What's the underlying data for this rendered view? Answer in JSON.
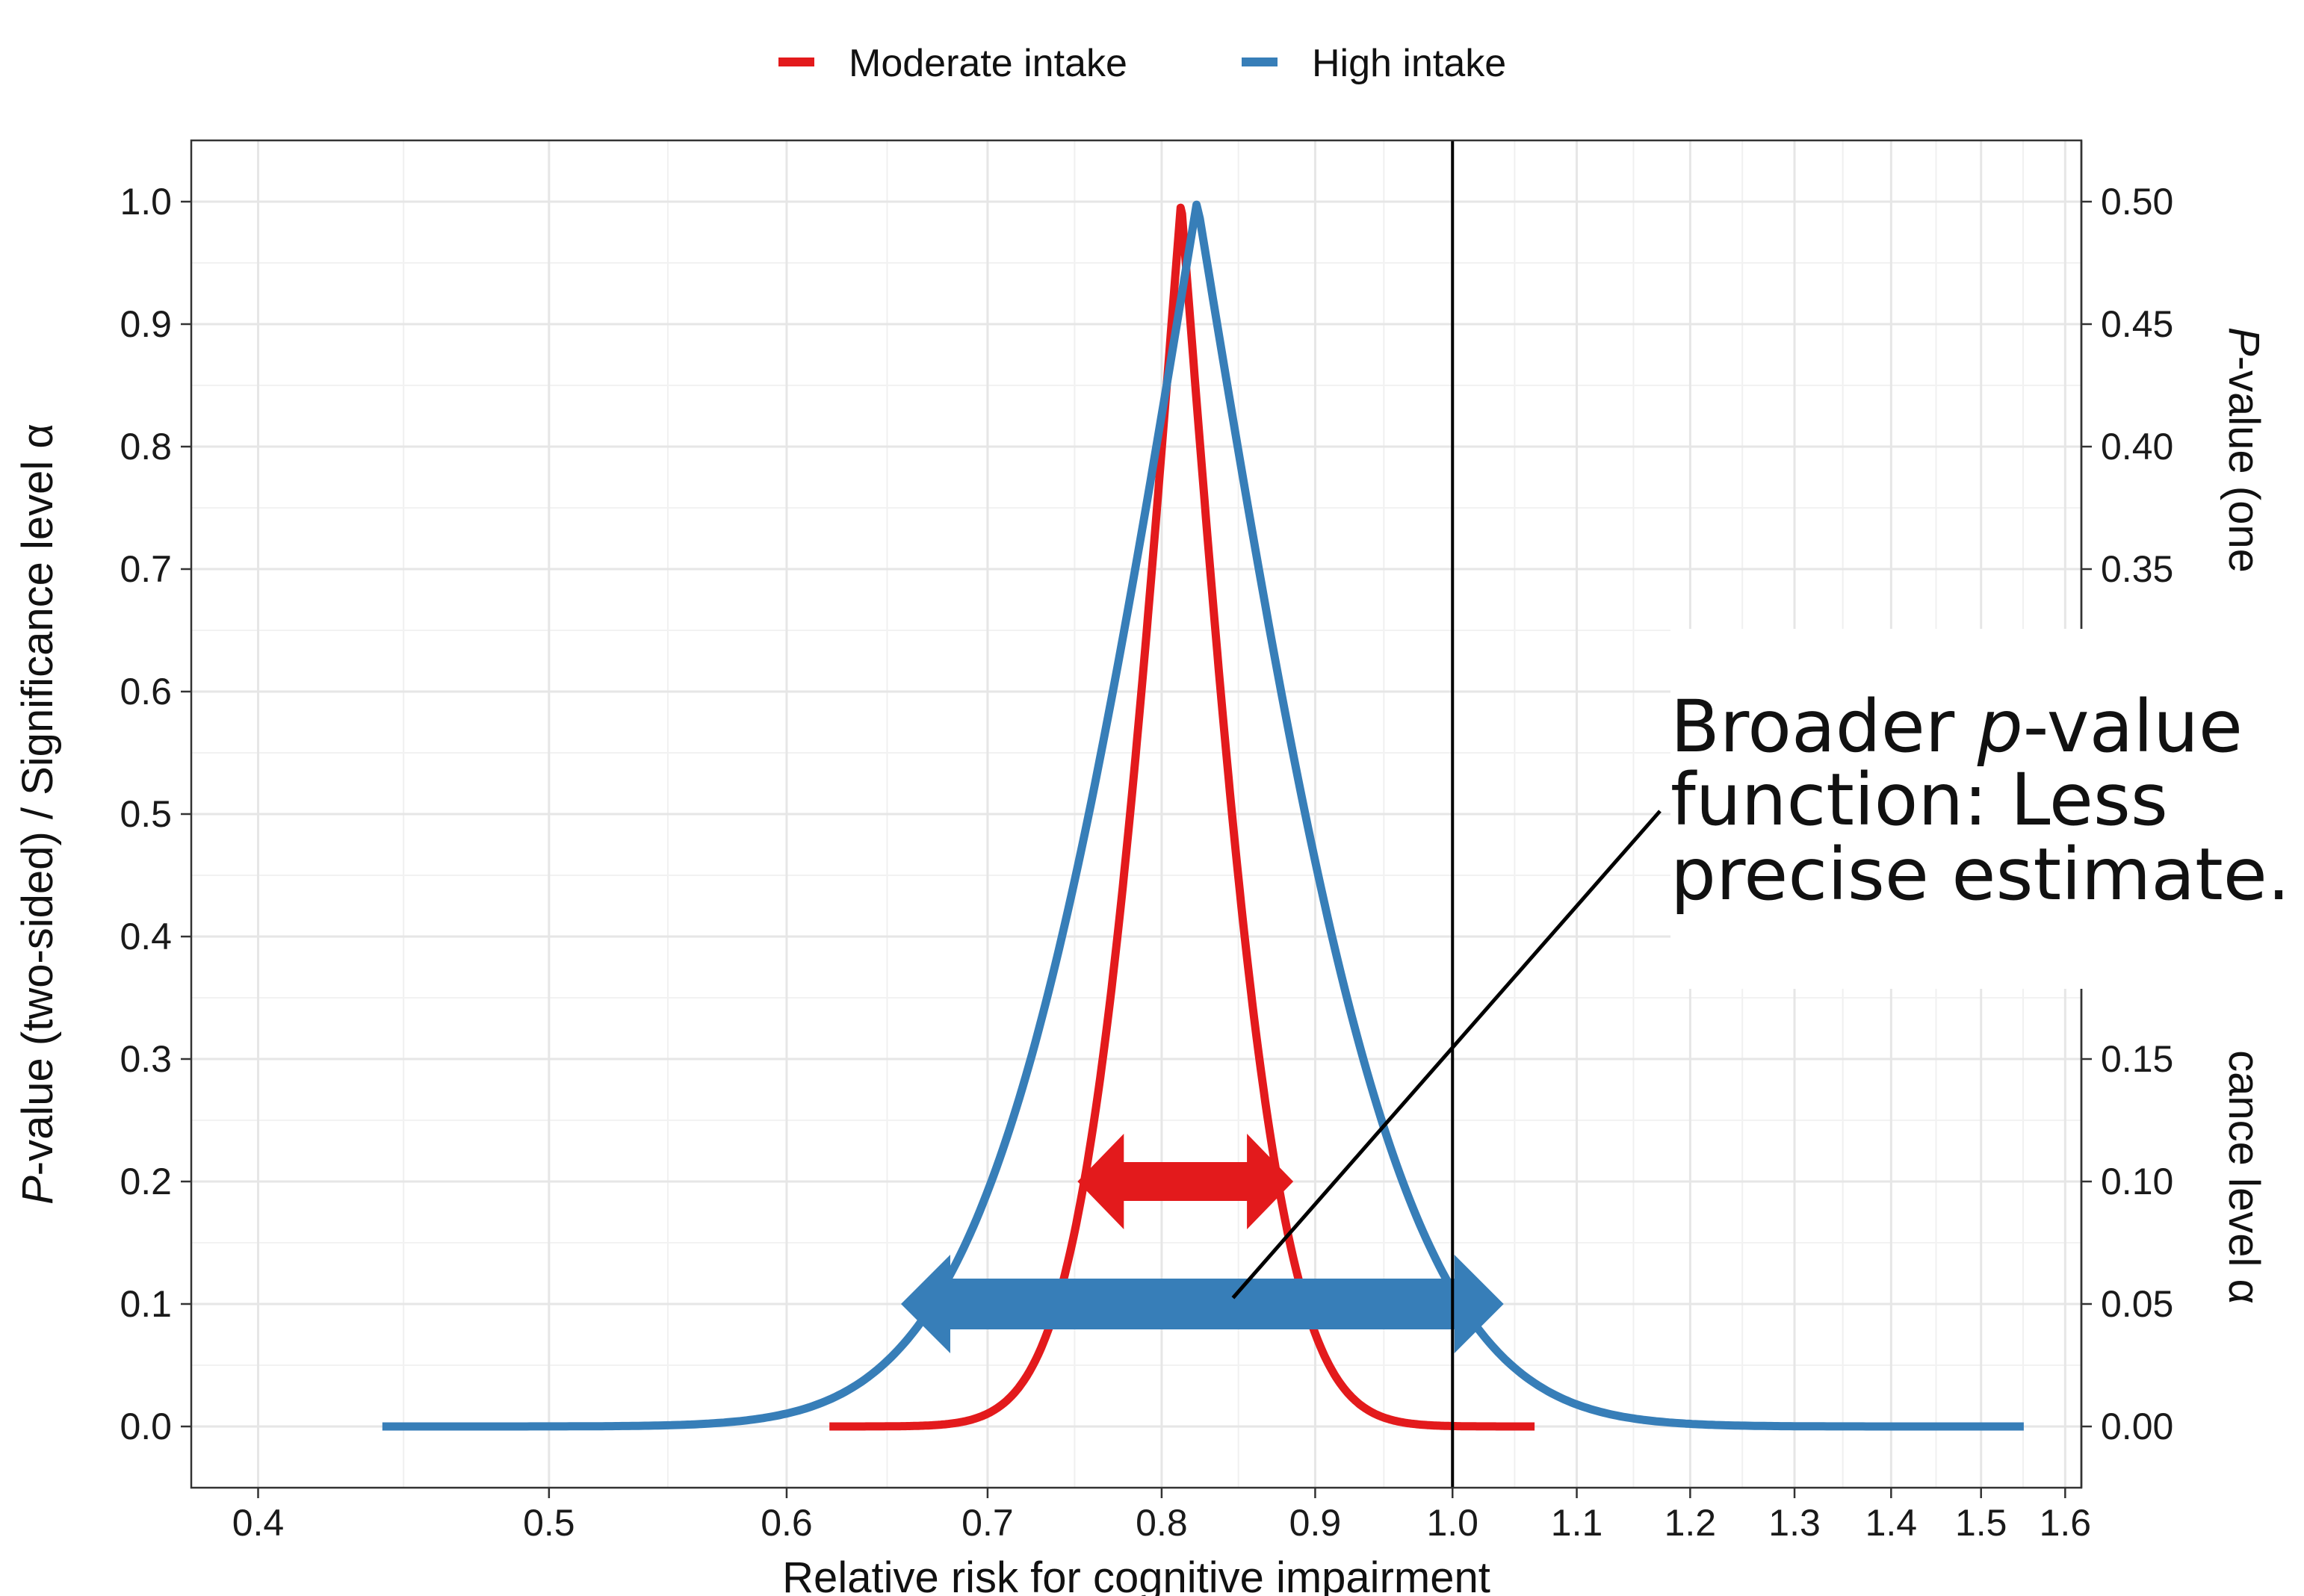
{
  "chart_data": {
    "type": "line",
    "xlabel": "Relative risk for cognitive impairment",
    "ylabel": "P-value (two-sided) / Significance level α",
    "ylabel_italic_prefix": "P",
    "ylabel_rest": "-value (two-sided) / Significance level α",
    "ylabel2_top": "P-value (one",
    "ylabel2_top_italic_prefix": "P",
    "ylabel2_top_rest": "-value (one",
    "ylabel2_bottom": "cance level α",
    "x_scale": "log",
    "xlim": [
      0.38,
      1.62
    ],
    "ylim": [
      -0.05,
      1.05
    ],
    "x_ticks": [
      "0.4",
      "0.5",
      "0.6",
      "0.7",
      "0.8",
      "0.9",
      "1.0",
      "1.1",
      "1.2",
      "1.3",
      "1.4",
      "1.5",
      "1.6"
    ],
    "y_ticks": [
      "0.0",
      "0.1",
      "0.2",
      "0.3",
      "0.4",
      "0.5",
      "0.6",
      "0.7",
      "0.8",
      "0.9",
      "1.0"
    ],
    "y2_ticks": [
      "0.00",
      "0.05",
      "0.10",
      "0.15",
      "0.35",
      "0.40",
      "0.45",
      "0.50"
    ],
    "y2_tick_values": [
      0.0,
      0.05,
      0.1,
      0.15,
      0.35,
      0.4,
      0.45,
      0.5
    ],
    "grid": true,
    "reference_line_x": 1.0,
    "legend_position": "top",
    "series": [
      {
        "name": "Moderate intake",
        "color": "#e31a1c",
        "estimate": 0.812,
        "ci95": [
          0.725,
          0.91
        ],
        "x_range": [
          0.62,
          1.065
        ]
      },
      {
        "name": "High intake",
        "color": "#377eb8",
        "estimate": 0.822,
        "ci95": [
          0.645,
          1.045
        ],
        "x_range": [
          0.44,
          1.55
        ]
      }
    ],
    "intervals": [
      {
        "series": "Moderate intake",
        "x": [
          0.75,
          0.885
        ],
        "y": 0.2
      },
      {
        "series": "High intake",
        "x": [
          0.655,
          1.04
        ],
        "y": 0.1
      }
    ],
    "annotation": {
      "lines": [
        "Broader p-value",
        "function: Less",
        "precise estimate."
      ],
      "italic_word": "p",
      "target": {
        "x": 0.845,
        "y": 0.105
      },
      "anchor": {
        "x": 1.16,
        "y": 0.52
      }
    }
  }
}
